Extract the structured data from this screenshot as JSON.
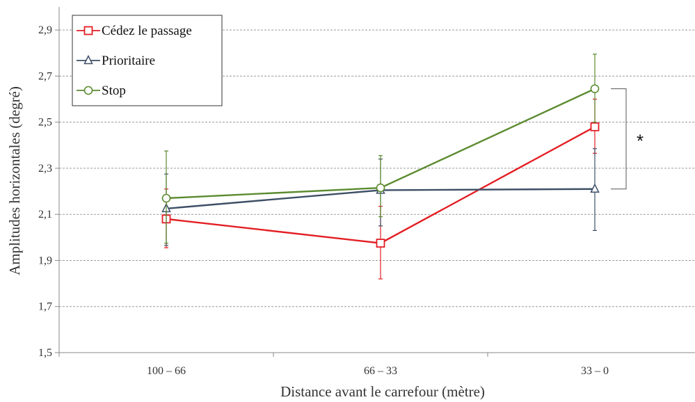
{
  "chart_data": {
    "type": "line",
    "categories": [
      "100 – 66",
      "66 – 33",
      "33 – 0"
    ],
    "xlabel": "Distance avant le carrefour (mètre)",
    "ylabel": "Amplitudes horizontales (degré)",
    "ylim": [
      1.5,
      3.0
    ],
    "yticks": [
      "1,5",
      "1,7",
      "1,9",
      "2,1",
      "2,3",
      "2,5",
      "2,7",
      "2,9"
    ],
    "grid": "horizontal dashed",
    "legend": "top-left",
    "series": [
      {
        "name": "Cédez le passage",
        "color": "#e31e24",
        "marker": "square",
        "values": [
          2.08,
          1.975,
          2.48
        ],
        "err_low": [
          1.955,
          1.82,
          2.365
        ],
        "err_high": [
          2.21,
          2.135,
          2.6
        ]
      },
      {
        "name": "Prioritaire",
        "color": "#3d4f66",
        "marker": "triangle",
        "values": [
          2.125,
          2.205,
          2.21
        ],
        "err_low": [
          1.965,
          2.05,
          2.03
        ],
        "err_high": [
          2.275,
          2.34,
          2.385
        ]
      },
      {
        "name": "Stop",
        "color": "#5b8a2f",
        "marker": "circle",
        "values": [
          2.17,
          2.215,
          2.645
        ],
        "err_low": [
          1.975,
          2.09,
          2.5
        ],
        "err_high": [
          2.375,
          2.355,
          2.795
        ]
      }
    ],
    "annotation": "*"
  }
}
